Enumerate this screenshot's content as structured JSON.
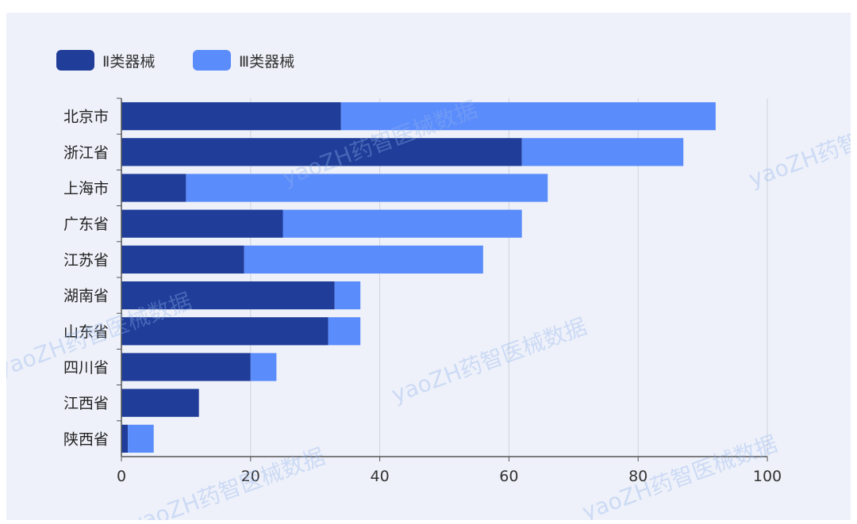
{
  "chart_data": {
    "type": "bar",
    "orientation": "horizontal",
    "stacked": true,
    "categories": [
      "北京市",
      "浙江省",
      "上海市",
      "广东省",
      "江苏省",
      "湖南省",
      "山东省",
      "四川省",
      "江西省",
      "陕西省"
    ],
    "series": [
      {
        "name": "Ⅱ类器械",
        "color": "#1f3d99",
        "values": [
          34,
          62,
          10,
          25,
          19,
          33,
          32,
          20,
          12,
          1
        ]
      },
      {
        "name": "Ⅲ类器械",
        "color": "#5b8cfb",
        "values": [
          58,
          25,
          56,
          37,
          37,
          4,
          5,
          4,
          0,
          4
        ]
      }
    ],
    "xticks": [
      "0",
      "20",
      "40",
      "60",
      "80",
      "100"
    ],
    "xlim": [
      0,
      100
    ],
    "grid": "vertical",
    "legend": "top-left"
  },
  "watermarks": [
    "yaoZH药智医械数据",
    "yaoZH药智医械数据",
    "yaoZH药智医械数据",
    "yaoZH药智医械数据",
    "yaoZH药智医械数据",
    "yaoZH药智医械数据",
    "yaoZH药智医械数据"
  ]
}
